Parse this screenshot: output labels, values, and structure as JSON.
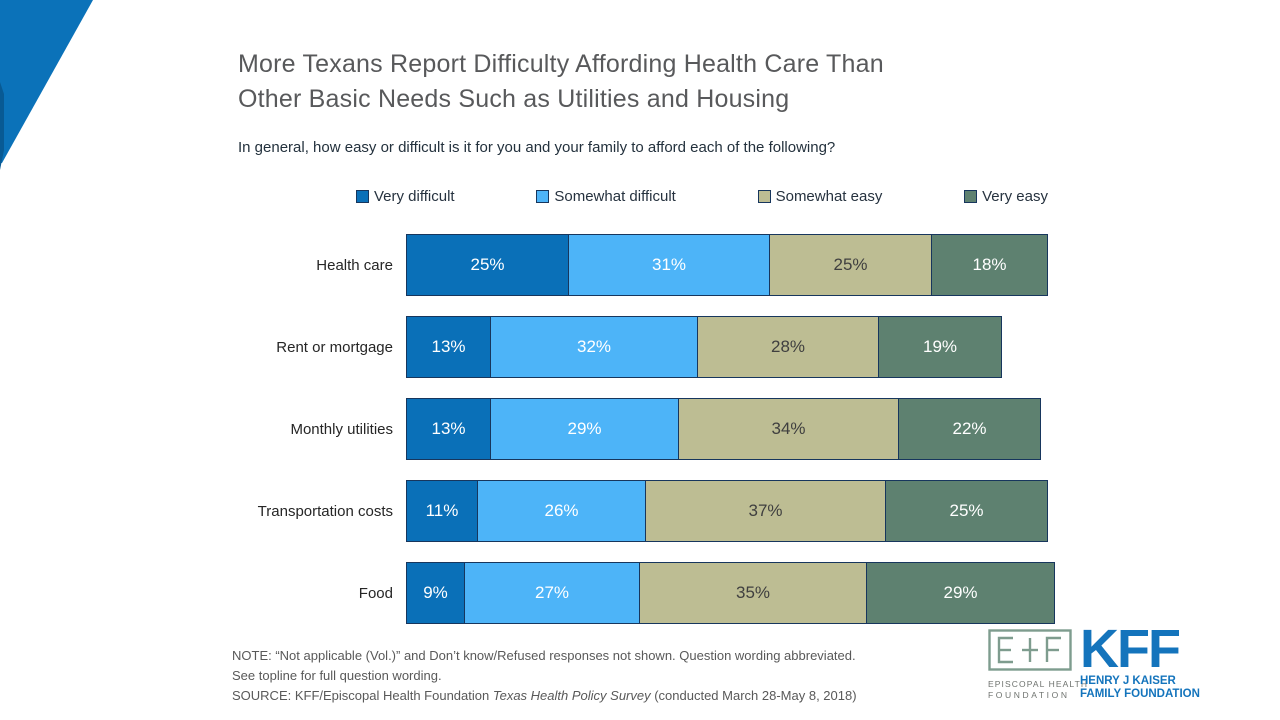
{
  "header": {
    "title_line1": "More Texans Report Difficulty Affording Health Care Than",
    "title_line2": "Other Basic Needs Such as Utilities and Housing",
    "subtitle": "In general, how easy or difficult is it for you and your family to afford each of the following?"
  },
  "chart_data": {
    "type": "bar",
    "orientation": "horizontal",
    "stacked": true,
    "xlim": [
      0,
      100
    ],
    "grid": false,
    "legend_position": "top",
    "value_suffix": "%",
    "bar_border_color": "#17365d",
    "categories": [
      "Health care",
      "Rent or mortgage",
      "Monthly utilities",
      "Transportation costs",
      "Food"
    ],
    "series": [
      {
        "name": "Very difficult",
        "color": "#0a70b8",
        "text_color": "#ffffff",
        "values": [
          25,
          13,
          13,
          11,
          9
        ]
      },
      {
        "name": "Somewhat difficult",
        "color": "#4db4f8",
        "text_color": "#ffffff",
        "values": [
          31,
          32,
          29,
          26,
          27
        ]
      },
      {
        "name": "Somewhat easy",
        "color": "#bdbd93",
        "text_color": "#3f3f3f",
        "values": [
          25,
          28,
          34,
          37,
          35
        ]
      },
      {
        "name": "Very easy",
        "color": "#5e8170",
        "text_color": "#ffffff",
        "values": [
          18,
          19,
          22,
          25,
          29
        ]
      }
    ]
  },
  "footer": {
    "note_line1": "NOTE: “Not applicable (Vol.)” and Don’t know/Refused responses not shown. Question wording abbreviated.",
    "note_line2": "See topline for full question wording.",
    "source_prefix": "SOURCE: KFF/Episcopal Health Foundation ",
    "source_italic": "Texas Health Policy Survey",
    "source_suffix": " (conducted March 28-May 8, 2018)"
  },
  "logos": {
    "ehf": {
      "line1": "EPISCOPAL HEALTH",
      "line2": "FOUNDATION",
      "frame_color": "#7e9c8e",
      "text_color": "#6f736f"
    },
    "kff": {
      "acronym": "KFF",
      "line1": "HENRY J KAISER",
      "line2": "FAMILY FOUNDATION",
      "color": "#1474bc"
    }
  },
  "decor": {
    "triangle_color": "#0b72b9",
    "triangle_shadow_color": "#085a94"
  }
}
